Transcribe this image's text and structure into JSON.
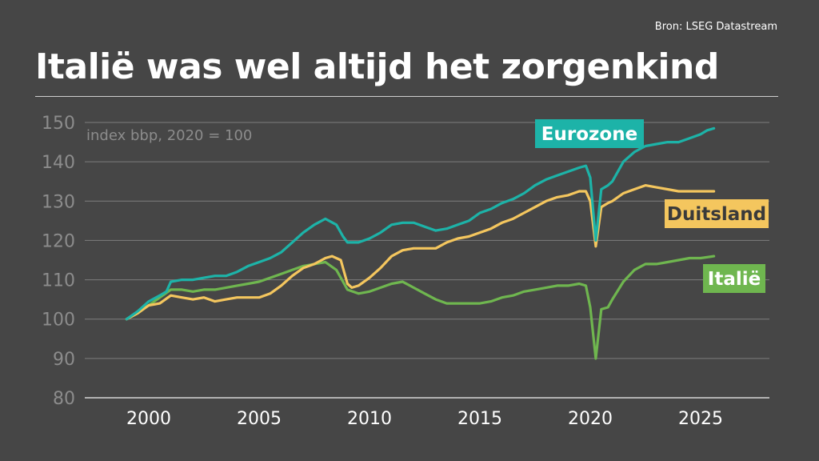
{
  "source": "Bron: LSEG Datastream",
  "title": "Italië was wel altijd het zorgenkind",
  "chart_data": {
    "type": "line",
    "ylabel": "index bbp, 2020 = 100",
    "ylim": [
      80,
      150
    ],
    "xlim": [
      1997.5,
      2028
    ],
    "yticks": [
      80,
      90,
      100,
      110,
      120,
      130,
      140,
      150
    ],
    "xticks": [
      2000,
      2005,
      2010,
      2015,
      2020,
      2025
    ],
    "grid": true,
    "legend": "inline labels at right end of lines",
    "series": [
      {
        "name": "Eurozone",
        "color": "#1db3a8",
        "label_text_color": "#ffffff",
        "points": [
          [
            1999.0,
            100
          ],
          [
            1999.5,
            102
          ],
          [
            2000.0,
            104.5
          ],
          [
            2000.5,
            106
          ],
          [
            2000.8,
            107
          ],
          [
            2001.0,
            109.5
          ],
          [
            2001.5,
            110
          ],
          [
            2002.0,
            110
          ],
          [
            2002.5,
            110.5
          ],
          [
            2003.0,
            111
          ],
          [
            2003.5,
            111
          ],
          [
            2004.0,
            112
          ],
          [
            2004.5,
            113.5
          ],
          [
            2005.0,
            114.5
          ],
          [
            2005.5,
            115.5
          ],
          [
            2006.0,
            117
          ],
          [
            2006.5,
            119.5
          ],
          [
            2007.0,
            122
          ],
          [
            2007.5,
            124
          ],
          [
            2008.0,
            125.5
          ],
          [
            2008.5,
            124
          ],
          [
            2008.8,
            121
          ],
          [
            2009.0,
            119.5
          ],
          [
            2009.5,
            119.5
          ],
          [
            2010.0,
            120.5
          ],
          [
            2010.5,
            122
          ],
          [
            2011.0,
            124
          ],
          [
            2011.5,
            124.5
          ],
          [
            2012.0,
            124.5
          ],
          [
            2012.5,
            123.5
          ],
          [
            2013.0,
            122.5
          ],
          [
            2013.5,
            123
          ],
          [
            2014.0,
            124
          ],
          [
            2014.5,
            125
          ],
          [
            2015.0,
            127
          ],
          [
            2015.5,
            128
          ],
          [
            2016.0,
            129.5
          ],
          [
            2016.5,
            130.5
          ],
          [
            2017.0,
            132
          ],
          [
            2017.5,
            134
          ],
          [
            2018.0,
            135.5
          ],
          [
            2018.5,
            136.5
          ],
          [
            2019.0,
            137.5
          ],
          [
            2019.5,
            138.5
          ],
          [
            2019.8,
            139
          ],
          [
            2020.0,
            136
          ],
          [
            2020.25,
            120
          ],
          [
            2020.5,
            133
          ],
          [
            2020.8,
            134
          ],
          [
            2021.0,
            135
          ],
          [
            2021.5,
            140
          ],
          [
            2022.0,
            142.5
          ],
          [
            2022.5,
            144
          ],
          [
            2023.0,
            144.5
          ],
          [
            2023.5,
            145
          ],
          [
            2024.0,
            145
          ],
          [
            2024.5,
            146
          ],
          [
            2025.0,
            147
          ],
          [
            2025.3,
            148
          ],
          [
            2025.6,
            148.5
          ]
        ]
      },
      {
        "name": "Duitsland",
        "color": "#f4c65e",
        "label_text_color": "#3a3a3a",
        "points": [
          [
            1999.0,
            100
          ],
          [
            1999.5,
            101.5
          ],
          [
            2000.0,
            103.5
          ],
          [
            2000.5,
            104
          ],
          [
            2001.0,
            106
          ],
          [
            2001.5,
            105.5
          ],
          [
            2002.0,
            105
          ],
          [
            2002.5,
            105.5
          ],
          [
            2003.0,
            104.5
          ],
          [
            2003.5,
            105
          ],
          [
            2004.0,
            105.5
          ],
          [
            2004.5,
            105.5
          ],
          [
            2005.0,
            105.5
          ],
          [
            2005.5,
            106.5
          ],
          [
            2006.0,
            108.5
          ],
          [
            2006.5,
            111
          ],
          [
            2007.0,
            113
          ],
          [
            2007.5,
            114
          ],
          [
            2008.0,
            115.5
          ],
          [
            2008.3,
            116
          ],
          [
            2008.7,
            115
          ],
          [
            2009.0,
            109
          ],
          [
            2009.2,
            108
          ],
          [
            2009.5,
            108.5
          ],
          [
            2010.0,
            110.5
          ],
          [
            2010.5,
            113
          ],
          [
            2011.0,
            116
          ],
          [
            2011.5,
            117.5
          ],
          [
            2012.0,
            118
          ],
          [
            2012.5,
            118
          ],
          [
            2013.0,
            118
          ],
          [
            2013.5,
            119.5
          ],
          [
            2014.0,
            120.5
          ],
          [
            2014.5,
            121
          ],
          [
            2015.0,
            122
          ],
          [
            2015.5,
            123
          ],
          [
            2016.0,
            124.5
          ],
          [
            2016.5,
            125.5
          ],
          [
            2017.0,
            127
          ],
          [
            2017.5,
            128.5
          ],
          [
            2018.0,
            130
          ],
          [
            2018.5,
            131
          ],
          [
            2019.0,
            131.5
          ],
          [
            2019.5,
            132.5
          ],
          [
            2019.8,
            132.5
          ],
          [
            2020.0,
            130
          ],
          [
            2020.25,
            118.5
          ],
          [
            2020.5,
            128.5
          ],
          [
            2020.8,
            129.5
          ],
          [
            2021.0,
            130
          ],
          [
            2021.5,
            132
          ],
          [
            2022.0,
            133
          ],
          [
            2022.5,
            134
          ],
          [
            2023.0,
            133.5
          ],
          [
            2023.5,
            133
          ],
          [
            2024.0,
            132.5
          ],
          [
            2024.5,
            132.5
          ],
          [
            2025.0,
            132.5
          ],
          [
            2025.6,
            132.5
          ]
        ]
      },
      {
        "name": "Italië",
        "color": "#6fb64f",
        "label_text_color": "#ffffff",
        "points": [
          [
            1999.0,
            100
          ],
          [
            1999.5,
            101.5
          ],
          [
            2000.0,
            103.5
          ],
          [
            2000.5,
            105.5
          ],
          [
            2001.0,
            107.5
          ],
          [
            2001.5,
            107.5
          ],
          [
            2002.0,
            107
          ],
          [
            2002.5,
            107.5
          ],
          [
            2003.0,
            107.5
          ],
          [
            2003.5,
            108
          ],
          [
            2004.0,
            108.5
          ],
          [
            2004.5,
            109
          ],
          [
            2005.0,
            109.5
          ],
          [
            2005.5,
            110.5
          ],
          [
            2006.0,
            111.5
          ],
          [
            2006.5,
            112.5
          ],
          [
            2007.0,
            113.5
          ],
          [
            2007.5,
            114
          ],
          [
            2008.0,
            114.5
          ],
          [
            2008.5,
            112.5
          ],
          [
            2008.8,
            109.5
          ],
          [
            2009.0,
            107.5
          ],
          [
            2009.5,
            106.5
          ],
          [
            2010.0,
            107
          ],
          [
            2010.5,
            108
          ],
          [
            2011.0,
            109
          ],
          [
            2011.5,
            109.5
          ],
          [
            2012.0,
            108
          ],
          [
            2012.5,
            106.5
          ],
          [
            2013.0,
            105
          ],
          [
            2013.5,
            104
          ],
          [
            2014.0,
            104
          ],
          [
            2014.5,
            104
          ],
          [
            2015.0,
            104
          ],
          [
            2015.5,
            104.5
          ],
          [
            2016.0,
            105.5
          ],
          [
            2016.5,
            106
          ],
          [
            2017.0,
            107
          ],
          [
            2017.5,
            107.5
          ],
          [
            2018.0,
            108
          ],
          [
            2018.5,
            108.5
          ],
          [
            2019.0,
            108.5
          ],
          [
            2019.5,
            109
          ],
          [
            2019.8,
            108.5
          ],
          [
            2020.0,
            103
          ],
          [
            2020.25,
            90
          ],
          [
            2020.5,
            102.5
          ],
          [
            2020.8,
            103
          ],
          [
            2021.0,
            105
          ],
          [
            2021.5,
            109.5
          ],
          [
            2022.0,
            112.5
          ],
          [
            2022.5,
            114
          ],
          [
            2023.0,
            114
          ],
          [
            2023.5,
            114.5
          ],
          [
            2024.0,
            115
          ],
          [
            2024.5,
            115.5
          ],
          [
            2025.0,
            115.5
          ],
          [
            2025.6,
            116
          ]
        ]
      }
    ]
  }
}
